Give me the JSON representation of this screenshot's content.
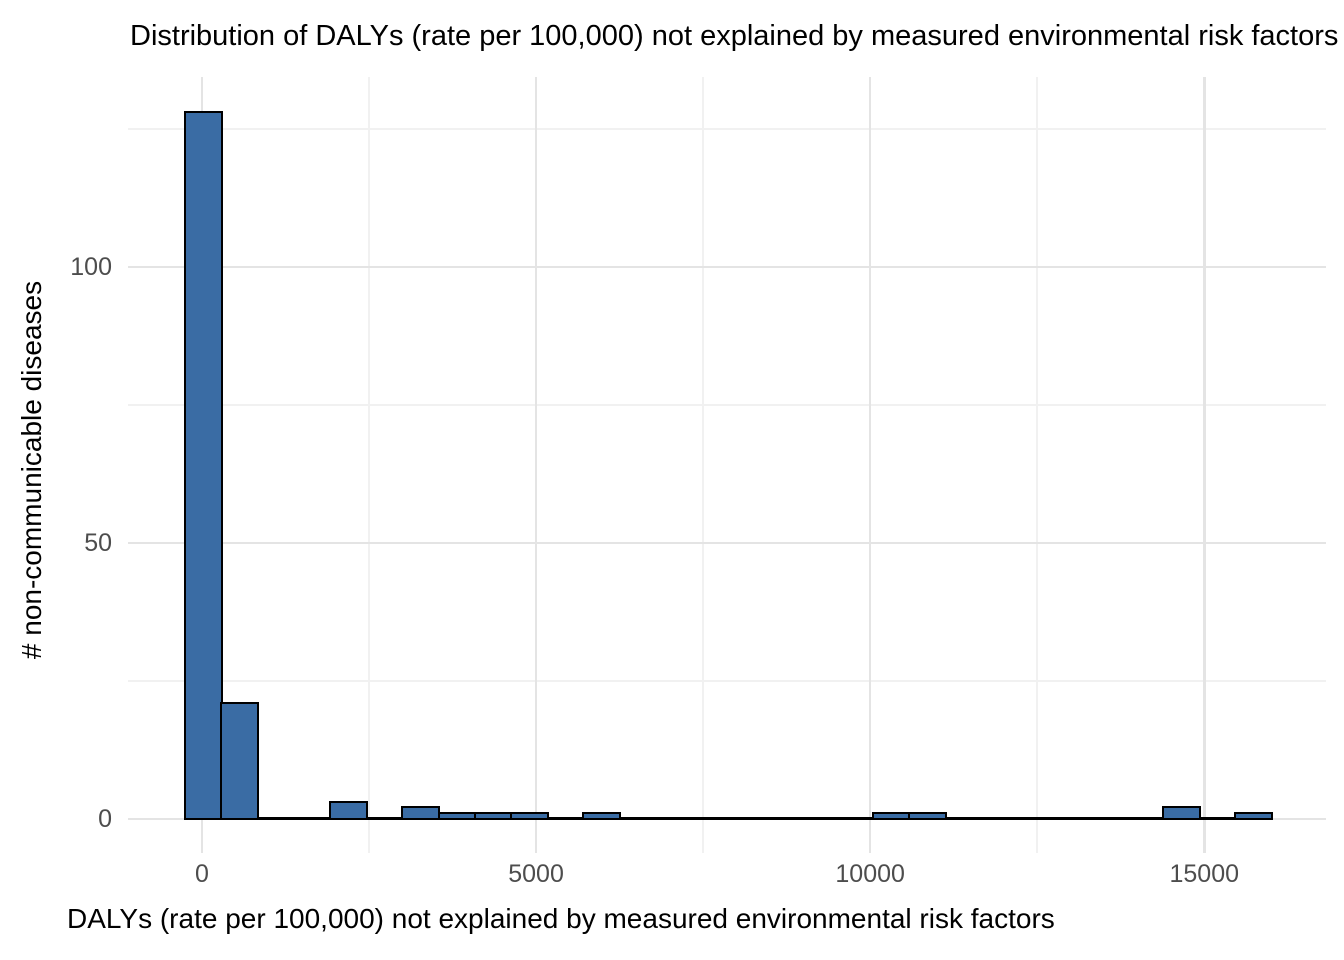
{
  "chart_data": {
    "type": "histogram",
    "title": "Distribution of DALYs (rate per 100,000) not explained by measured environmental risk factors",
    "xlabel": "DALYs (rate per 100,000) not explained by measured environmental risk factors",
    "ylabel": "# non-communicable diseases",
    "x_axis": {
      "tick_values": [
        0,
        5000,
        10000,
        15000
      ],
      "tick_labels": [
        "0",
        "5000",
        "10000",
        "15000"
      ],
      "minor_tick_values": [
        2500,
        7500,
        12500
      ],
      "range": [
        -1107,
        16822
      ]
    },
    "y_axis": {
      "tick_values": [
        0,
        50,
        100
      ],
      "tick_labels": [
        "0",
        "50",
        "100"
      ],
      "minor_tick_values": [
        25,
        75,
        125
      ],
      "range": [
        -6.2,
        134.4
      ]
    },
    "bins": {
      "bin_start": -250,
      "bin_width": 542,
      "counts": [
        128,
        21,
        0,
        0,
        3,
        0,
        2,
        1,
        1,
        1,
        0,
        1,
        0,
        0,
        0,
        0,
        0,
        0,
        0,
        1,
        1,
        0,
        0,
        0,
        0,
        0,
        0,
        2,
        0,
        1
      ]
    },
    "legend": "none",
    "grid": "on",
    "colors": {
      "bar_fill": "#3A6CA4",
      "bar_stroke": "#000000",
      "grid_major": "#E4E4E4",
      "grid_minor": "#F1F1F1",
      "tick_label": "#4D4D4D",
      "title_text": "#000000"
    }
  }
}
